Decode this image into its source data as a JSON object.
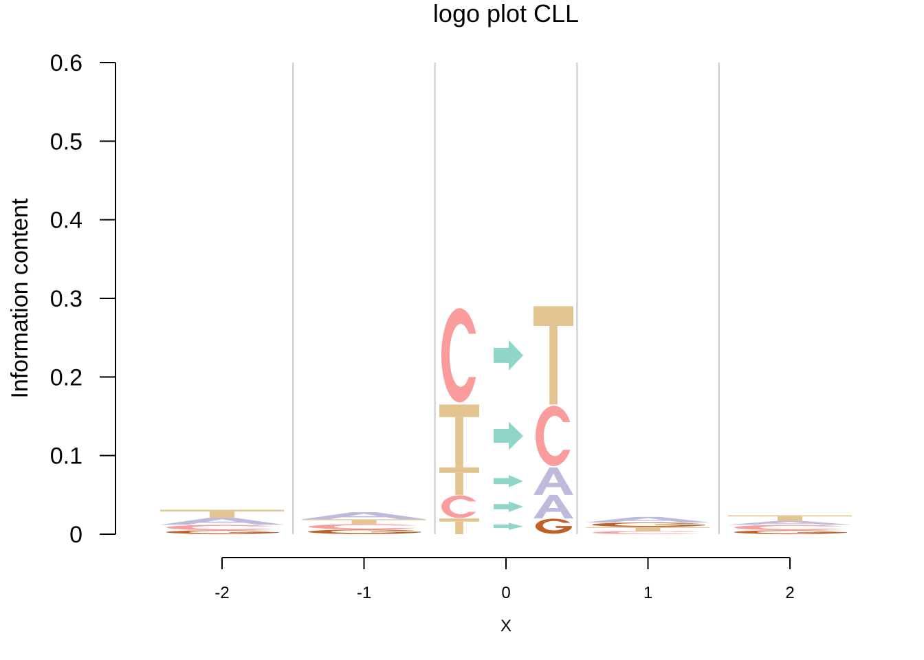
{
  "chart_data": {
    "type": "logo",
    "title": "logo plot CLL",
    "xlabel": "X",
    "ylabel": "Information content",
    "ylim": [
      0,
      0.6
    ],
    "yticks": [
      "0",
      "0.1",
      "0.2",
      "0.3",
      "0.4",
      "0.5",
      "0.6"
    ],
    "grid": false,
    "colors": {
      "T": "#e3c491",
      "C": "#fa9c9c",
      "A": "#bfbadb",
      "G": "#c1612a",
      "arrow": "#8fd5c8",
      "separator": "#c8c8c8"
    },
    "positions": [
      {
        "x": "-2",
        "letters": [
          {
            "base": "G",
            "height": 0.005
          },
          {
            "base": "C",
            "height": 0.007
          },
          {
            "base": "A",
            "height": 0.009
          },
          {
            "base": "T",
            "height": 0.01
          }
        ]
      },
      {
        "x": "-1",
        "letters": [
          {
            "base": "G",
            "height": 0.006
          },
          {
            "base": "C",
            "height": 0.007
          },
          {
            "base": "T",
            "height": 0.006
          },
          {
            "base": "A",
            "height": 0.009
          }
        ]
      },
      {
        "x": "1",
        "letters": [
          {
            "base": "C",
            "height": 0.004
          },
          {
            "base": "T",
            "height": 0.005
          },
          {
            "base": "G",
            "height": 0.006
          },
          {
            "base": "A",
            "height": 0.007
          }
        ]
      },
      {
        "x": "2",
        "letters": [
          {
            "base": "G",
            "height": 0.005
          },
          {
            "base": "C",
            "height": 0.007
          },
          {
            "base": "A",
            "height": 0.005
          },
          {
            "base": "T",
            "height": 0.007
          }
        ]
      }
    ],
    "substitutions": {
      "x": "0",
      "pairs": [
        {
          "from": "T",
          "to": "G",
          "height": 0.02
        },
        {
          "from": "C",
          "to": "A",
          "height": 0.03
        },
        {
          "from": "T",
          "to": "A",
          "height": 0.035
        },
        {
          "from": "T",
          "to": "C",
          "height": 0.08
        },
        {
          "from": "C",
          "to": "T",
          "height": 0.125
        }
      ]
    }
  }
}
